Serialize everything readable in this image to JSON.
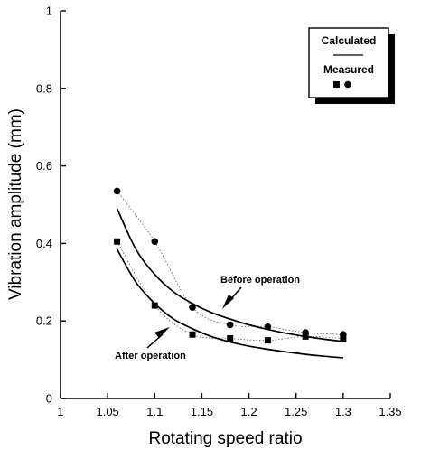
{
  "chart_data": {
    "type": "scatter",
    "xlabel": "Rotating speed ratio",
    "ylabel": "Vibration amplitude (mm)",
    "xlim": [
      1,
      1.35
    ],
    "ylim": [
      0,
      1
    ],
    "x_ticks": [
      "1",
      "1.05",
      "1.1",
      "1.15",
      "1.2",
      "1.25",
      "1.3",
      "1.35"
    ],
    "y_ticks": [
      "0",
      "0.2",
      "0.4",
      "0.6",
      "0.8",
      "1"
    ],
    "grid": false,
    "legend": {
      "placement": "top-right",
      "calculated_label": "Calculated",
      "measured_label": "Measured"
    },
    "annotations": {
      "before": "Before operation",
      "after": "After operation"
    },
    "measured": {
      "before": {
        "marker": "circle",
        "x": [
          1.06,
          1.1,
          1.14,
          1.18,
          1.22,
          1.26,
          1.3
        ],
        "y": [
          0.535,
          0.405,
          0.235,
          0.19,
          0.185,
          0.17,
          0.165
        ]
      },
      "after": {
        "marker": "square",
        "x": [
          1.06,
          1.1,
          1.14,
          1.18,
          1.22,
          1.26,
          1.3
        ],
        "y": [
          0.405,
          0.24,
          0.165,
          0.155,
          0.15,
          0.16,
          0.155
        ]
      }
    },
    "calculated": {
      "before": {
        "x": [
          1.06,
          1.08,
          1.1,
          1.12,
          1.14,
          1.16,
          1.18,
          1.2,
          1.22,
          1.24,
          1.26,
          1.28,
          1.3
        ],
        "y": [
          0.49,
          0.385,
          0.32,
          0.275,
          0.245,
          0.222,
          0.205,
          0.19,
          0.178,
          0.168,
          0.16,
          0.153,
          0.147
        ]
      },
      "after": {
        "x": [
          1.06,
          1.08,
          1.1,
          1.12,
          1.14,
          1.16,
          1.18,
          1.2,
          1.22,
          1.24,
          1.26,
          1.28,
          1.3
        ],
        "y": [
          0.385,
          0.3,
          0.245,
          0.205,
          0.18,
          0.16,
          0.146,
          0.135,
          0.127,
          0.12,
          0.114,
          0.109,
          0.105
        ]
      }
    }
  }
}
